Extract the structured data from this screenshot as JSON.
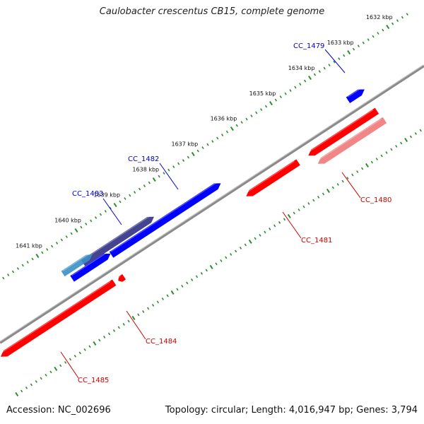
{
  "map": {
    "title": "Caulobacter crescentus CB15, complete genome",
    "accession": "Accession: NC_002696",
    "summary": "Topology: circular; Length: 4,016,947 bp; Genes: 3,794",
    "colors": {
      "backbone": "#8a8a8a",
      "tick": "#2e8b2e",
      "forward_gene": "#0000ff",
      "forward_label": "#0000cc",
      "reverse_gene": "#ff0000",
      "reverse_label": "#cc0000"
    },
    "scale_ticks": [
      "1632 kbp",
      "1633 kbp",
      "1634 kbp",
      "1635 kbp",
      "1636 kbp",
      "1637 kbp",
      "1638 kbp",
      "1639 kbp",
      "1640 kbp",
      "1641 kbp"
    ],
    "genes": [
      {
        "label": "CC_1479",
        "strand": "forward"
      },
      {
        "label": "CC_1480",
        "strand": "reverse"
      },
      {
        "label": "CC_1481",
        "strand": "reverse"
      },
      {
        "label": "CC_1482",
        "strand": "forward"
      },
      {
        "label": "CC_1483",
        "strand": "forward"
      },
      {
        "label": "CC_1484",
        "strand": "reverse"
      },
      {
        "label": "CC_1485",
        "strand": "reverse"
      }
    ]
  }
}
